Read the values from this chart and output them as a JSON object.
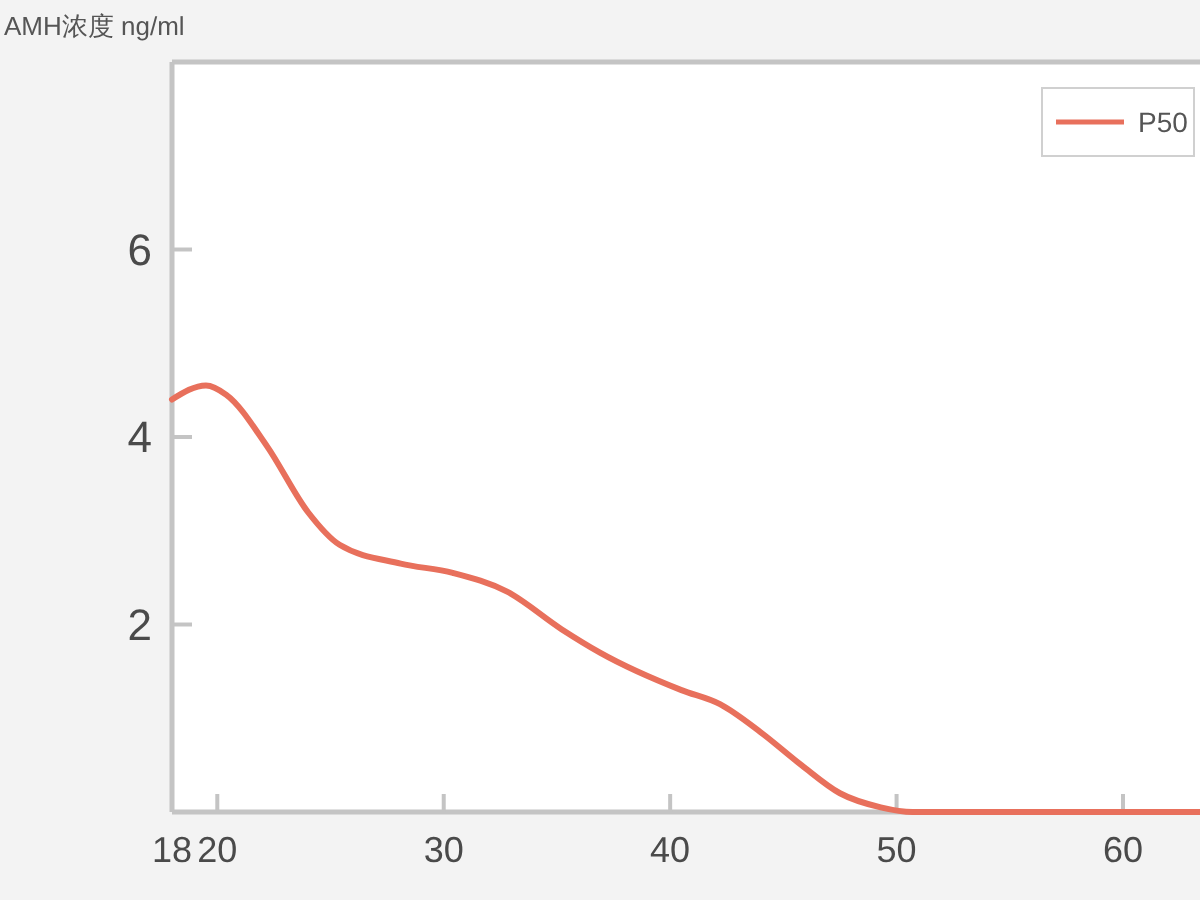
{
  "chart_data": {
    "type": "line",
    "ylabel": "AMH浓度 ng/ml",
    "x": [
      18,
      19.5,
      20.4,
      22.2,
      24,
      25.4,
      28.1,
      30.4,
      32.8,
      35.2,
      36.9,
      40.5,
      42.2,
      44,
      45.8,
      47.5,
      49.3,
      50.7,
      52.3,
      55.2,
      60,
      63.4
    ],
    "series": [
      {
        "name": "P50",
        "color": "#e8705c",
        "values": [
          4.4,
          4.55,
          4.45,
          3.9,
          3.2,
          2.85,
          2.65,
          2.55,
          2.35,
          1.95,
          1.7,
          1.3,
          1.15,
          0.85,
          0.5,
          0.2,
          0.05,
          0,
          0,
          0,
          0,
          0
        ]
      }
    ],
    "xlim": [
      18,
      63.4
    ],
    "xticks": [
      18,
      20,
      30,
      40,
      50,
      60
    ],
    "ylim": [
      0,
      8
    ],
    "yticks": [
      2,
      4,
      6
    ],
    "legend": "top right",
    "line_style": "solid"
  }
}
